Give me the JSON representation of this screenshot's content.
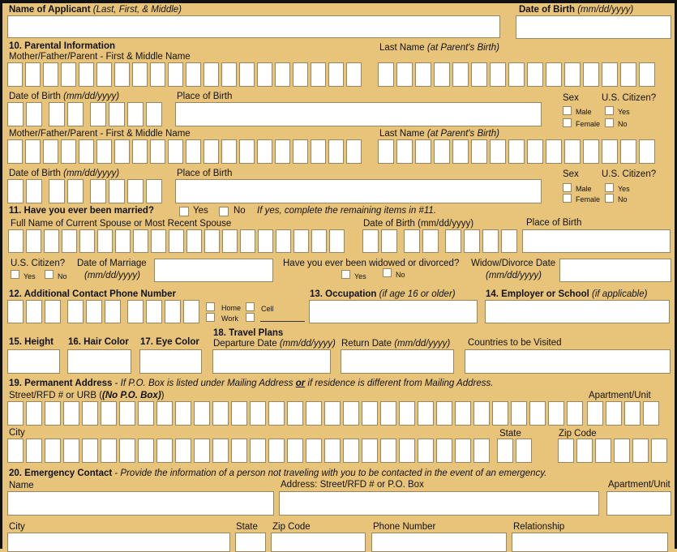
{
  "applicant": {
    "name_label": "Name of Applicant",
    "name_hint": "(Last, First, & Middle)",
    "dob_label": "Date of Birth",
    "dob_hint": "(mm/dd/yyyy)"
  },
  "s10": {
    "title": "10. Parental Information",
    "parent_name": "Mother/Father/Parent - First & Middle Name",
    "last_name": "Last Name",
    "last_name_hint": "(at Parent's Birth)",
    "dob": "Date of Birth",
    "dob_hint": "(mm/dd/yyyy)",
    "pob": "Place of Birth",
    "sex": "Sex",
    "citizen": "U.S. Citizen?",
    "male": "Male",
    "female": "Female",
    "yes": "Yes",
    "no": "No"
  },
  "s11": {
    "title": "11. Have you ever been married?",
    "yes": "Yes",
    "no": "No",
    "note": "If yes, complete the remaining items in #11.",
    "spouse_name": "Full Name of Current Spouse or Most Recent Spouse",
    "spouse_dob": "Date of Birth (mm/dd/yyyy)",
    "spouse_pob": "Place of Birth",
    "citizen": "U.S. Citizen?",
    "marriage_date": "Date of Marriage",
    "marriage_hint": "(mm/dd/yyyy)",
    "widowed": "Have you ever been widowed or divorced?",
    "wd_date": "Widow/Divorce Date",
    "wd_hint": "(mm/dd/yyyy)"
  },
  "s12": {
    "title": "12. Additional Contact Phone Number",
    "home": "Home",
    "work": "Work",
    "cell": "Cell"
  },
  "s13": {
    "title": "13. Occupation",
    "hint": "(if age 16 or older)"
  },
  "s14": {
    "title": "14. Employer or School",
    "hint": "(if applicable)"
  },
  "s15": {
    "title": "15. Height"
  },
  "s16": {
    "title": "16. Hair Color"
  },
  "s17": {
    "title": "17. Eye Color"
  },
  "s18": {
    "title": "18. Travel Plans",
    "departure": "Departure Date",
    "return": "Return Date",
    "date_hint": "(mm/dd/yyyy)",
    "countries": "Countries to be Visited"
  },
  "s19": {
    "title": "19. Permanent Address",
    "note_a": "If P.O. Box is listed under Mailing Address",
    "note_or": "or",
    "note_b": "if residence is different from Mailing Address.",
    "street": "Street/RFD # or URB",
    "street_hint": "(No P.O. Box)",
    "apt": "Apartment/Unit",
    "city": "City",
    "state": "State",
    "zip": "Zip Code"
  },
  "s20": {
    "title": "20. Emergency Contact",
    "note": "Provide the information of a person not traveling with you to be contacted in the event of an emergency.",
    "name": "Name",
    "address": "Address: Street/RFD # or P.O. Box",
    "apt": "Apartment/Unit",
    "city": "City",
    "state": "State",
    "zip": "Zip Code",
    "phone": "Phone Number",
    "relationship": "Relationship"
  }
}
